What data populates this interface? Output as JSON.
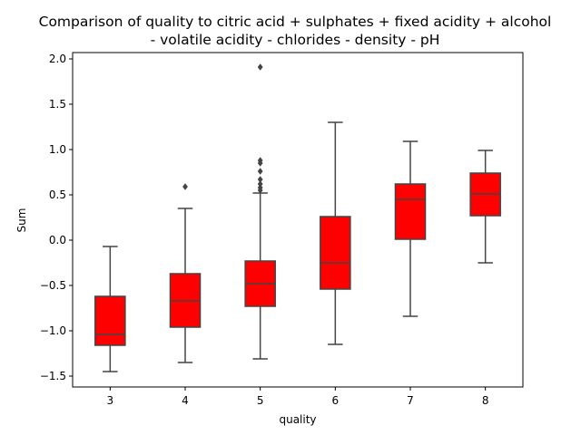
{
  "chart_data": {
    "type": "box",
    "title_line1": "Comparison of quality to citric acid + sulphates + fixed acidity + alcohol",
    "title_line2": "- volatile acidity - chlorides - density - pH",
    "xlabel": "quality",
    "ylabel": "Sum",
    "ylim": [
      -1.62,
      2.07
    ],
    "yticks": [
      2.0,
      1.5,
      1.0,
      0.5,
      0.0,
      -0.5,
      -1.0,
      -1.5
    ],
    "ytick_labels": [
      "2.0",
      "1.5",
      "1.0",
      "0.5",
      "0.0",
      "−0.5",
      "−1.0",
      "−1.5"
    ],
    "categories": [
      "3",
      "4",
      "5",
      "6",
      "7",
      "8"
    ],
    "box_color": "#ff0000",
    "line_color": "#444444",
    "grid": false,
    "boxes": [
      {
        "category": "3",
        "whisker_low": -1.45,
        "q1": -1.16,
        "median": -1.04,
        "q3": -0.62,
        "whisker_high": -0.07,
        "outliers": []
      },
      {
        "category": "4",
        "whisker_low": -1.35,
        "q1": -0.96,
        "median": -0.67,
        "q3": -0.37,
        "whisker_high": 0.35,
        "outliers": [
          0.59
        ]
      },
      {
        "category": "5",
        "whisker_low": -1.31,
        "q1": -0.73,
        "median": -0.48,
        "q3": -0.23,
        "whisker_high": 0.52,
        "outliers": [
          0.55,
          0.58,
          0.62,
          0.67,
          0.76,
          0.85,
          0.88,
          1.91
        ]
      },
      {
        "category": "6",
        "whisker_low": -1.15,
        "q1": -0.54,
        "median": -0.25,
        "q3": 0.26,
        "whisker_high": 1.3,
        "outliers": []
      },
      {
        "category": "7",
        "whisker_low": -0.84,
        "q1": 0.01,
        "median": 0.45,
        "q3": 0.62,
        "whisker_high": 1.09,
        "outliers": []
      },
      {
        "category": "8",
        "whisker_low": -0.25,
        "q1": 0.27,
        "median": 0.51,
        "q3": 0.74,
        "whisker_high": 0.99,
        "outliers": []
      }
    ]
  }
}
